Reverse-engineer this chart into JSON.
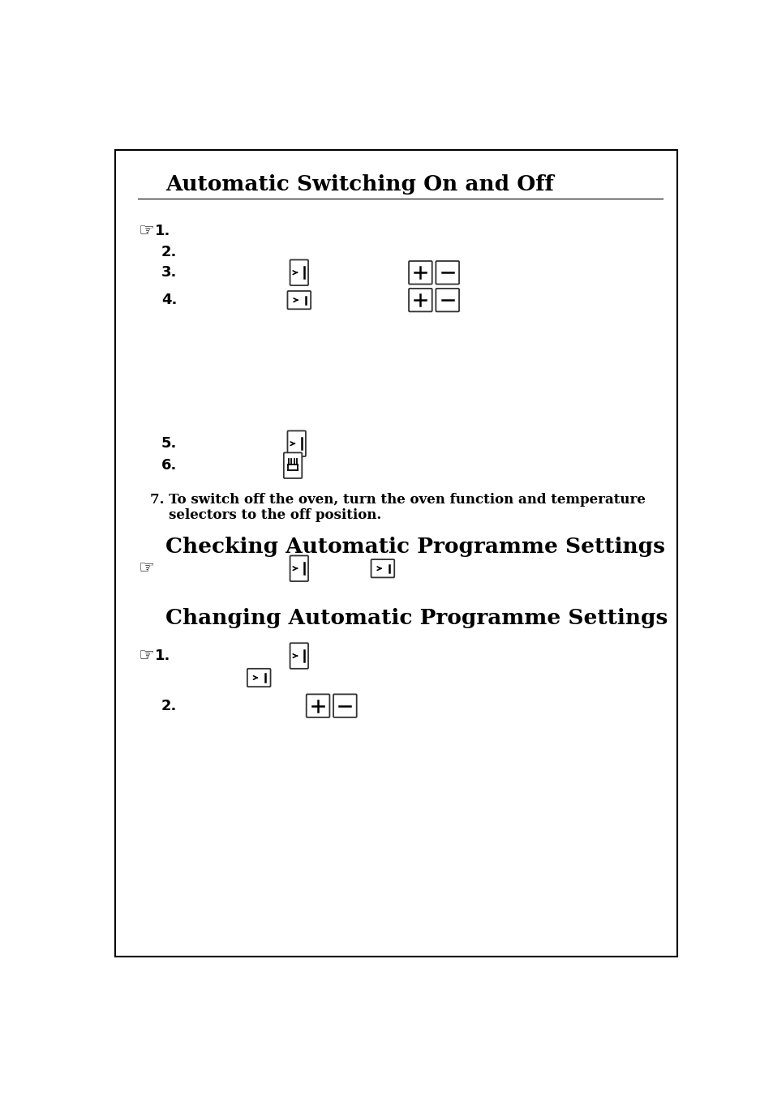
{
  "bg_color": "#ffffff",
  "border_color": "#000000",
  "title1": "Automatic Switching On and Off",
  "title2": "Checking Automatic Programme Settings",
  "title3": "Changing Automatic Programme Settings",
  "step7_line1": "7. To switch off the oven, turn the oven function and temperature",
  "step7_line2": "    selectors to the off position."
}
